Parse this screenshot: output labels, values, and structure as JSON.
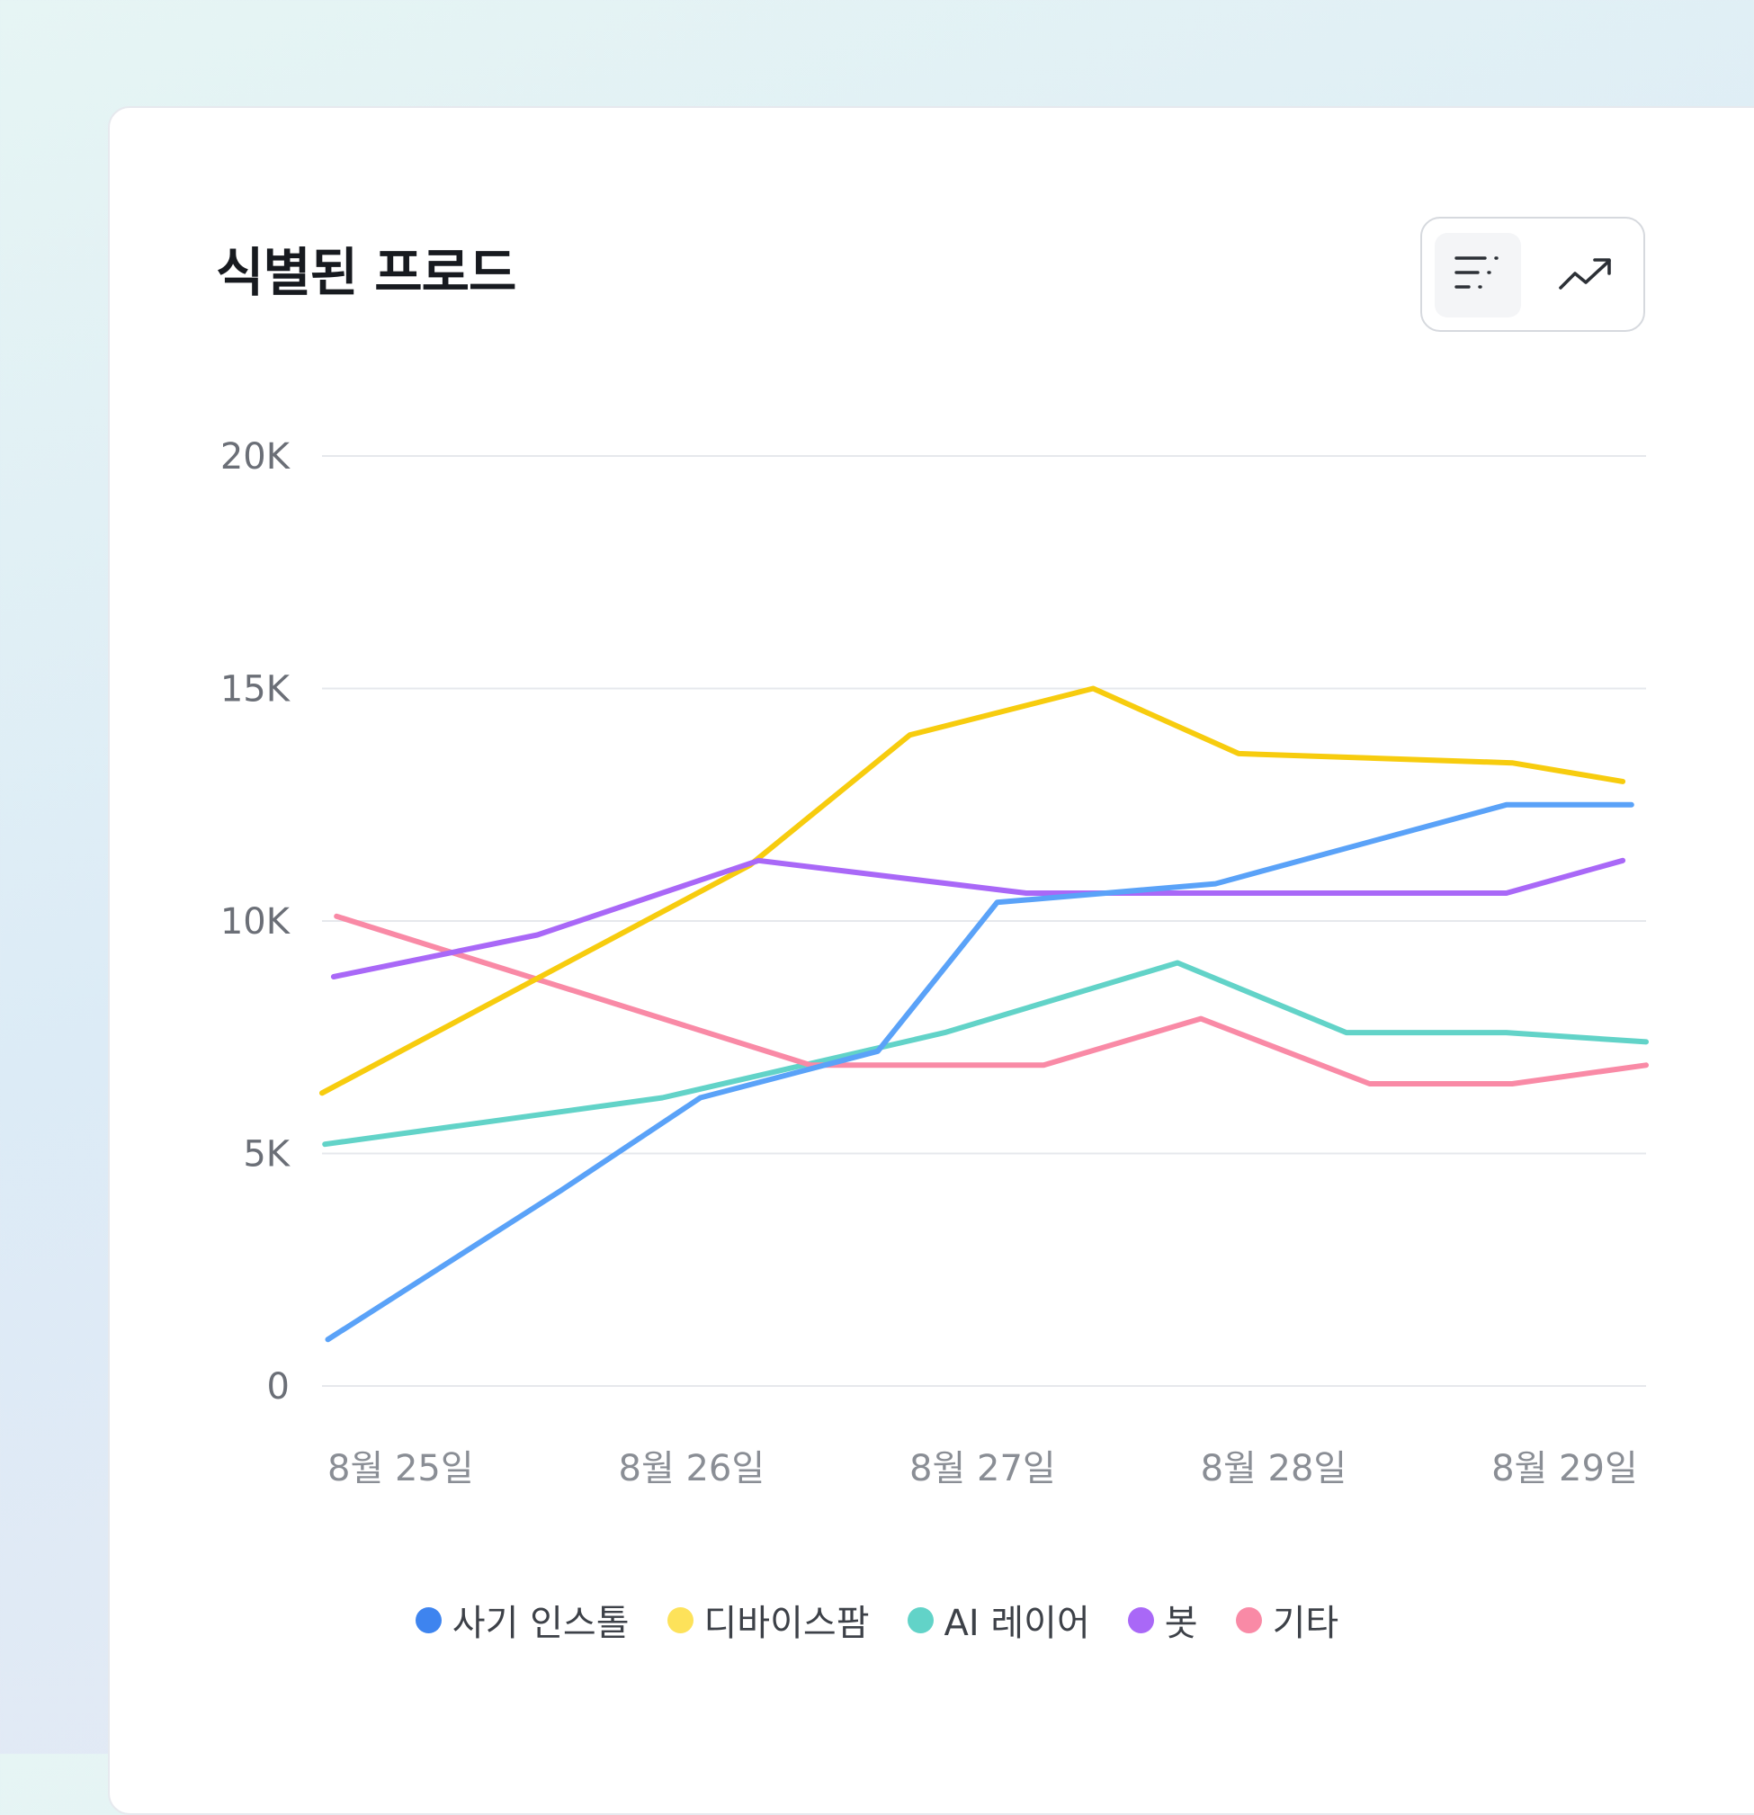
{
  "card": {
    "title": "식별된 프로드"
  },
  "toggle": {
    "options": [
      "list-view",
      "trend-view"
    ],
    "selected": "list-view"
  },
  "colors": {
    "fraud_install": "#5aa2f8",
    "device_farm": "#f7cc0e",
    "ai_layer": "#62d3c8",
    "bot": "#a968f7",
    "other": "#f98aa6",
    "legend_fraud_install": "#3e84ef",
    "legend_device_farm": "#fde25a",
    "gridline": "#e6e8ec",
    "tick_text": "#6b6f77",
    "xtick_text": "#8a8e95"
  },
  "chart_data": {
    "type": "line",
    "title": "식별된 프로드",
    "xlabel": "",
    "ylabel": "",
    "xlim": [
      0,
      4.55
    ],
    "ylim": [
      0,
      20000
    ],
    "grid": true,
    "legend_position": "bottom-center",
    "yticks": [
      {
        "value": 20000,
        "label": "20K"
      },
      {
        "value": 15000,
        "label": "15K"
      },
      {
        "value": 10000,
        "label": "10K"
      },
      {
        "value": 5000,
        "label": "5K"
      },
      {
        "value": 0,
        "label": "0"
      }
    ],
    "xticks": [
      {
        "value": 0.27,
        "label": "8월 25일"
      },
      {
        "value": 1.27,
        "label": "8월 26일"
      },
      {
        "value": 2.27,
        "label": "8월 27일"
      },
      {
        "value": 3.27,
        "label": "8월 28일"
      },
      {
        "value": 4.27,
        "label": "8월 29일"
      }
    ],
    "series": [
      {
        "name": "사기 인스톨",
        "key": "fraud_install",
        "x": [
          0.02,
          0.82,
          1.3,
          1.91,
          2.32,
          3.07,
          4.07,
          4.5
        ],
        "y": [
          1000,
          4200,
          6200,
          7200,
          10400,
          10800,
          12500,
          12500
        ]
      },
      {
        "name": "디바이스팜",
        "key": "device_farm",
        "x": [
          0,
          1.47,
          2.02,
          2.65,
          3.15,
          4.09,
          4.47
        ],
        "y": [
          6300,
          11200,
          14000,
          15000,
          13600,
          13400,
          13000
        ]
      },
      {
        "name": "AI 레이어",
        "key": "ai_layer",
        "x": [
          0.01,
          1.17,
          2.14,
          2.94,
          3.52,
          4.07,
          4.55
        ],
        "y": [
          5200,
          6200,
          7600,
          9100,
          7600,
          7600,
          7400
        ]
      },
      {
        "name": "봇",
        "key": "bot",
        "x": [
          0.04,
          0.74,
          1.5,
          2.42,
          4.07,
          4.47
        ],
        "y": [
          8800,
          9700,
          11300,
          10600,
          10600,
          11300
        ]
      },
      {
        "name": "기타",
        "key": "other",
        "x": [
          0.05,
          1.68,
          2.48,
          3.02,
          3.6,
          4.09,
          4.55
        ],
        "y": [
          10100,
          6900,
          6900,
          7900,
          6500,
          6500,
          6900
        ]
      }
    ]
  },
  "legend": {
    "items": [
      {
        "label": "사기 인스톨",
        "color": "#3e84ef"
      },
      {
        "label": "디바이스팜",
        "color": "#fde25a"
      },
      {
        "label": "AI 레이어",
        "color": "#62d3c8"
      },
      {
        "label": "봇",
        "color": "#a968f7"
      },
      {
        "label": "기타",
        "color": "#f98aa6"
      }
    ]
  }
}
